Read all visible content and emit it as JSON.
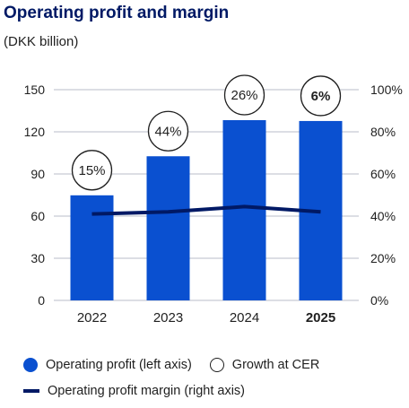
{
  "chart_data": {
    "type": "bar",
    "title": "Operating profit and margin",
    "subtitle": "(DKK billion)",
    "categories": [
      "2022",
      "2023",
      "2024",
      "2025"
    ],
    "bold_category": "2025",
    "left_axis": {
      "ylim": [
        0,
        150
      ],
      "ticks": [
        "0",
        "30",
        "60",
        "90",
        "120",
        "150"
      ]
    },
    "right_axis": {
      "ylim": [
        0,
        100
      ],
      "ticks": [
        "0%",
        "20%",
        "40%",
        "60%",
        "80%",
        "100%"
      ]
    },
    "series": [
      {
        "name": "Operating profit (left axis)",
        "type": "bar",
        "axis": "left",
        "values": [
          74.8,
          102.6,
          128.3,
          127.7
        ],
        "color": "#0a50d0"
      },
      {
        "name": "Operating profit margin (right axis)",
        "type": "line",
        "axis": "right",
        "values": [
          41,
          42,
          44.5,
          42
        ],
        "color": "#001965"
      }
    ],
    "growth": {
      "name": "Growth at CER",
      "labels": [
        "15%",
        "44%",
        "26%",
        "6%"
      ],
      "bold_index": 3
    },
    "grid": true
  }
}
